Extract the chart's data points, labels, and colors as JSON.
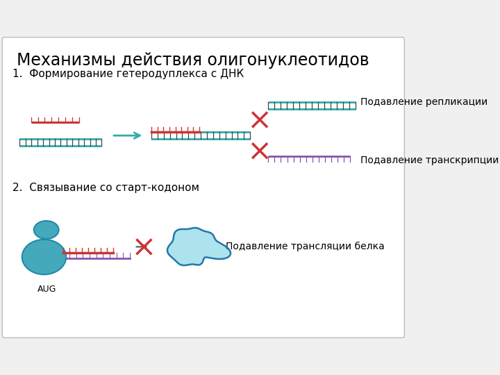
{
  "title": "Механизмы действия олигонуклеотидов",
  "section1": "1.  Формирование гетеродуплекса с ДНК",
  "section2": "2.  Связывание со старт-кодоном",
  "label_replication": "Подавление репликации",
  "label_transcription": "Подавление транскрипции",
  "label_translation": "Подавление трансляции белка",
  "label_aug": "AUG",
  "color_red": "#cc3333",
  "color_teal": "#33aaaa",
  "color_teal2": "#229988",
  "color_purple": "#8855aa",
  "color_blue": "#3399cc",
  "color_cross_teal": "#33aaaa",
  "cross_color": "#cc3333"
}
